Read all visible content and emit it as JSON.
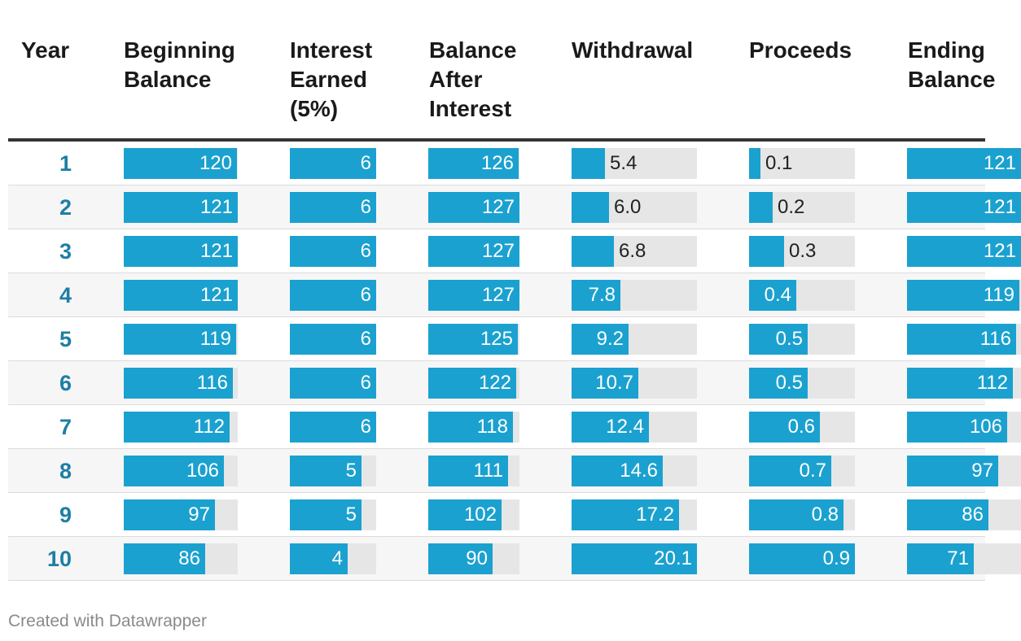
{
  "chart_data": {
    "type": "table",
    "title": "",
    "columns": [
      {
        "key": "year",
        "header": "Year"
      },
      {
        "key": "beginning_balance",
        "header": "Beginning\nBalance"
      },
      {
        "key": "interest_earned",
        "header": "Interest\nEarned\n(5%)"
      },
      {
        "key": "balance_after_interest",
        "header": "Balance\nAfter\nInterest"
      },
      {
        "key": "withdrawal",
        "header": "Withdrawal"
      },
      {
        "key": "proceeds",
        "header": "Proceeds"
      },
      {
        "key": "ending_balance",
        "header": "Ending\nBalance"
      }
    ],
    "rows": [
      {
        "year": "1",
        "beginning_balance": "120",
        "interest_earned": "6",
        "balance_after_interest": "126",
        "withdrawal": "5.4",
        "proceeds": "0.1",
        "ending_balance": "121"
      },
      {
        "year": "2",
        "beginning_balance": "121",
        "interest_earned": "6",
        "balance_after_interest": "127",
        "withdrawal": "6.0",
        "proceeds": "0.2",
        "ending_balance": "121"
      },
      {
        "year": "3",
        "beginning_balance": "121",
        "interest_earned": "6",
        "balance_after_interest": "127",
        "withdrawal": "6.8",
        "proceeds": "0.3",
        "ending_balance": "121"
      },
      {
        "year": "4",
        "beginning_balance": "121",
        "interest_earned": "6",
        "balance_after_interest": "127",
        "withdrawal": "7.8",
        "proceeds": "0.4",
        "ending_balance": "119"
      },
      {
        "year": "5",
        "beginning_balance": "119",
        "interest_earned": "6",
        "balance_after_interest": "125",
        "withdrawal": "9.2",
        "proceeds": "0.5",
        "ending_balance": "116"
      },
      {
        "year": "6",
        "beginning_balance": "116",
        "interest_earned": "6",
        "balance_after_interest": "122",
        "withdrawal": "10.7",
        "proceeds": "0.5",
        "ending_balance": "112"
      },
      {
        "year": "7",
        "beginning_balance": "112",
        "interest_earned": "6",
        "balance_after_interest": "118",
        "withdrawal": "12.4",
        "proceeds": "0.6",
        "ending_balance": "106"
      },
      {
        "year": "8",
        "beginning_balance": "106",
        "interest_earned": "5",
        "balance_after_interest": "111",
        "withdrawal": "14.6",
        "proceeds": "0.7",
        "ending_balance": "97"
      },
      {
        "year": "9",
        "beginning_balance": "97",
        "interest_earned": "5",
        "balance_after_interest": "102",
        "withdrawal": "17.2",
        "proceeds": "0.8",
        "ending_balance": "86"
      },
      {
        "year": "10",
        "beginning_balance": "86",
        "interest_earned": "4",
        "balance_after_interest": "90",
        "withdrawal": "20.1",
        "proceeds": "0.9",
        "ending_balance": "71"
      }
    ],
    "bar_max": {
      "beginning_balance": 121,
      "interest_earned": 6,
      "balance_after_interest": 127,
      "withdrawal": 20.1,
      "proceeds": 0.9,
      "ending_balance": 121
    }
  },
  "colors": {
    "bar_fill": "#1ba1cf",
    "bar_track": "#e6e6e6",
    "year_text": "#1e7ea6",
    "header_text": "#1a1a1a",
    "credit_text": "#8a8a8a"
  },
  "footer": {
    "credit": "Created with Datawrapper"
  }
}
